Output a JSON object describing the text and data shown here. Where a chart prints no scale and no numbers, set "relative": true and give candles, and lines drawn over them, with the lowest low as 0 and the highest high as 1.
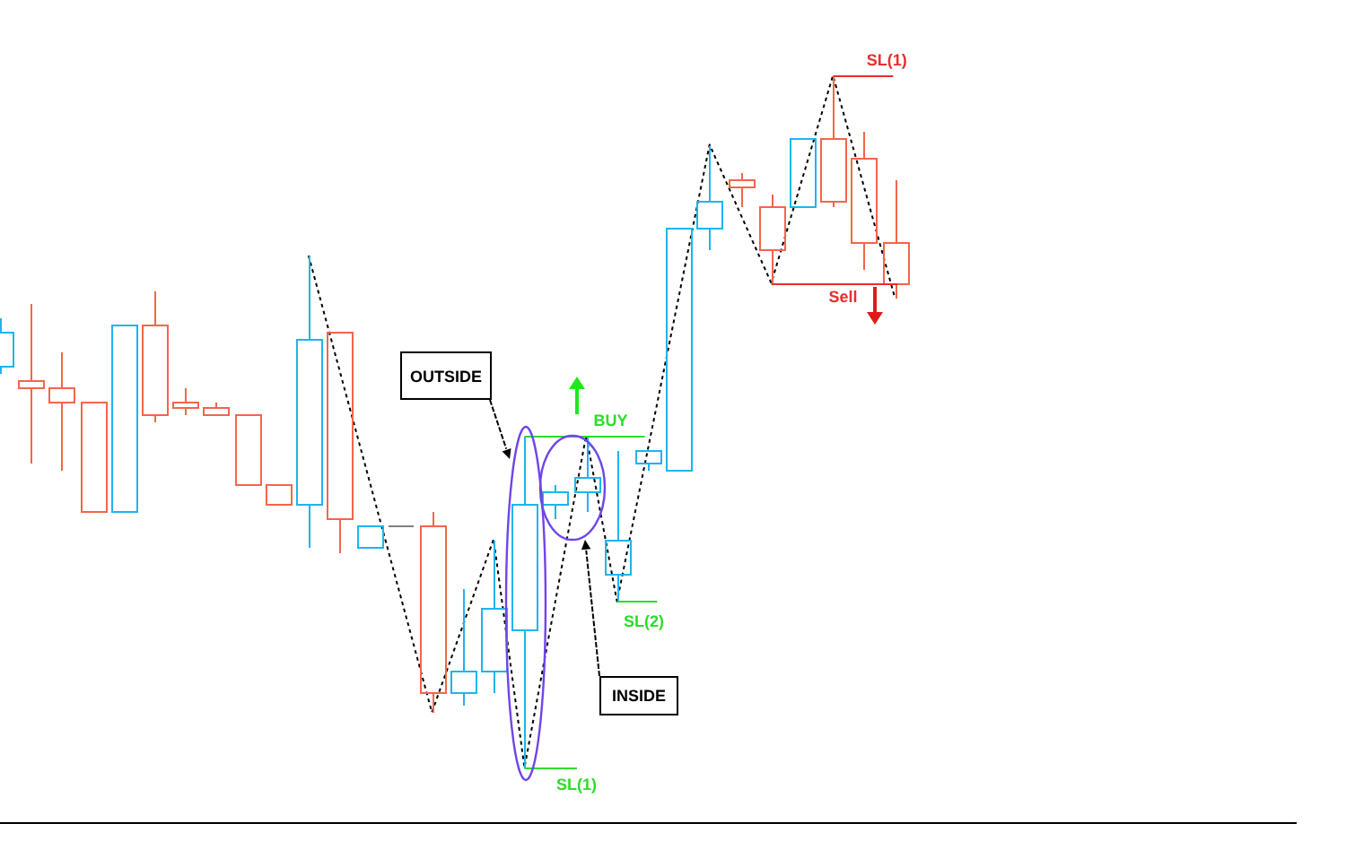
{
  "chart_data": {
    "type": "candlestick",
    "relative": true,
    "categories": [
      null,
      null,
      null,
      null,
      null,
      null,
      null,
      null,
      null,
      null,
      null,
      null,
      null,
      null,
      null,
      null,
      null,
      null,
      null,
      null,
      null,
      null,
      null,
      null,
      null,
      null,
      null,
      null,
      null,
      null
    ],
    "ohlc": [
      [
        0.58,
        0.65,
        0.57,
        0.63
      ],
      [
        0.56,
        0.67,
        0.44,
        0.55
      ],
      [
        0.55,
        0.6,
        0.43,
        0.53
      ],
      [
        0.53,
        0.53,
        0.37,
        0.37
      ],
      [
        0.37,
        0.64,
        0.37,
        0.64
      ],
      [
        0.64,
        0.69,
        0.5,
        0.51
      ],
      [
        0.53,
        0.55,
        0.51,
        0.52
      ],
      [
        0.52,
        0.53,
        0.51,
        0.51
      ],
      [
        0.51,
        0.51,
        0.41,
        0.41
      ],
      [
        0.41,
        0.41,
        0.38,
        0.38
      ],
      [
        0.38,
        0.74,
        0.32,
        0.62
      ],
      [
        0.63,
        0.63,
        0.31,
        0.36
      ],
      [
        0.32,
        0.35,
        0.32,
        0.35
      ],
      [
        0.35,
        0.35,
        0.35,
        0.35
      ],
      [
        0.35,
        0.37,
        0.08,
        0.11
      ],
      [
        0.11,
        0.26,
        0.09,
        0.14
      ],
      [
        0.14,
        0.33,
        0.11,
        0.23
      ],
      [
        0.2,
        0.48,
        0,
        0.38
      ],
      [
        0.38,
        0.41,
        0.36,
        0.4
      ],
      [
        0.4,
        0.48,
        0.37,
        0.42
      ],
      [
        0.28,
        0.46,
        0.24,
        0.33
      ],
      [
        0.44,
        0.46,
        0.43,
        0.46
      ],
      [
        0.43,
        0.78,
        0.43,
        0.78
      ],
      [
        0.78,
        0.9,
        0.75,
        0.82
      ],
      [
        0.85,
        0.86,
        0.81,
        0.84
      ],
      [
        0.81,
        0.83,
        0.7,
        0.75
      ],
      [
        0.81,
        0.91,
        0.81,
        0.91
      ],
      [
        0.91,
        1,
        0.81,
        0.82
      ],
      [
        0.88,
        0.92,
        0.72,
        0.76
      ],
      [
        0.76,
        0.85,
        0.68,
        0.7
      ]
    ],
    "colors": [
      "#1eb4ee",
      "#f2664a",
      "#f2664a",
      "#f2664a",
      "#1eb4ee",
      "#f2664a",
      "#f2664a",
      "#f2664a",
      "#f2664a",
      "#f2664a",
      "#1eb4ee",
      "#f2664a",
      "#1eb4ee",
      "#808080",
      "#f2664a",
      "#1eb4ee",
      "#1eb4ee",
      "#1eb4ee",
      "#1eb4ee",
      "#1eb4ee",
      "#1eb4ee",
      "#1eb4ee",
      "#1eb4ee",
      "#1eb4ee",
      "#f2664a",
      "#f2664a",
      "#1eb4ee",
      "#f2664a",
      "#f2664a",
      "#f2664a"
    ],
    "series": [
      {
        "type": "line",
        "color": "#000000",
        "values": [
          null,
          null,
          null,
          null,
          null,
          null,
          null,
          null,
          null,
          null,
          0.74,
          null,
          null,
          null,
          0.08,
          null,
          0.33,
          0,
          null,
          0.48,
          0.24,
          null,
          null,
          0.9,
          null,
          0.7,
          null,
          1,
          null,
          0.68
        ]
      }
    ],
    "line_style": "dotted",
    "ref_lines": [
      {
        "axis": "y",
        "value": 1,
        "label": "SL(1)",
        "color": "#e82e2e"
      },
      {
        "axis": "y",
        "value": 0.7,
        "label": "Sell",
        "color": "#e82e2e"
      },
      {
        "axis": "y",
        "value": 0.48,
        "label": "BUY",
        "color": "#2cdc2c"
      },
      {
        "axis": "y",
        "value": 0.24,
        "label": "SL(2)",
        "color": "#2cdc2c"
      },
      {
        "axis": "y",
        "value": 0,
        "label": "SL(1)",
        "color": "#2cdc2c"
      }
    ],
    "annotations": [
      "OUTSIDE",
      "INSIDE"
    ]
  }
}
